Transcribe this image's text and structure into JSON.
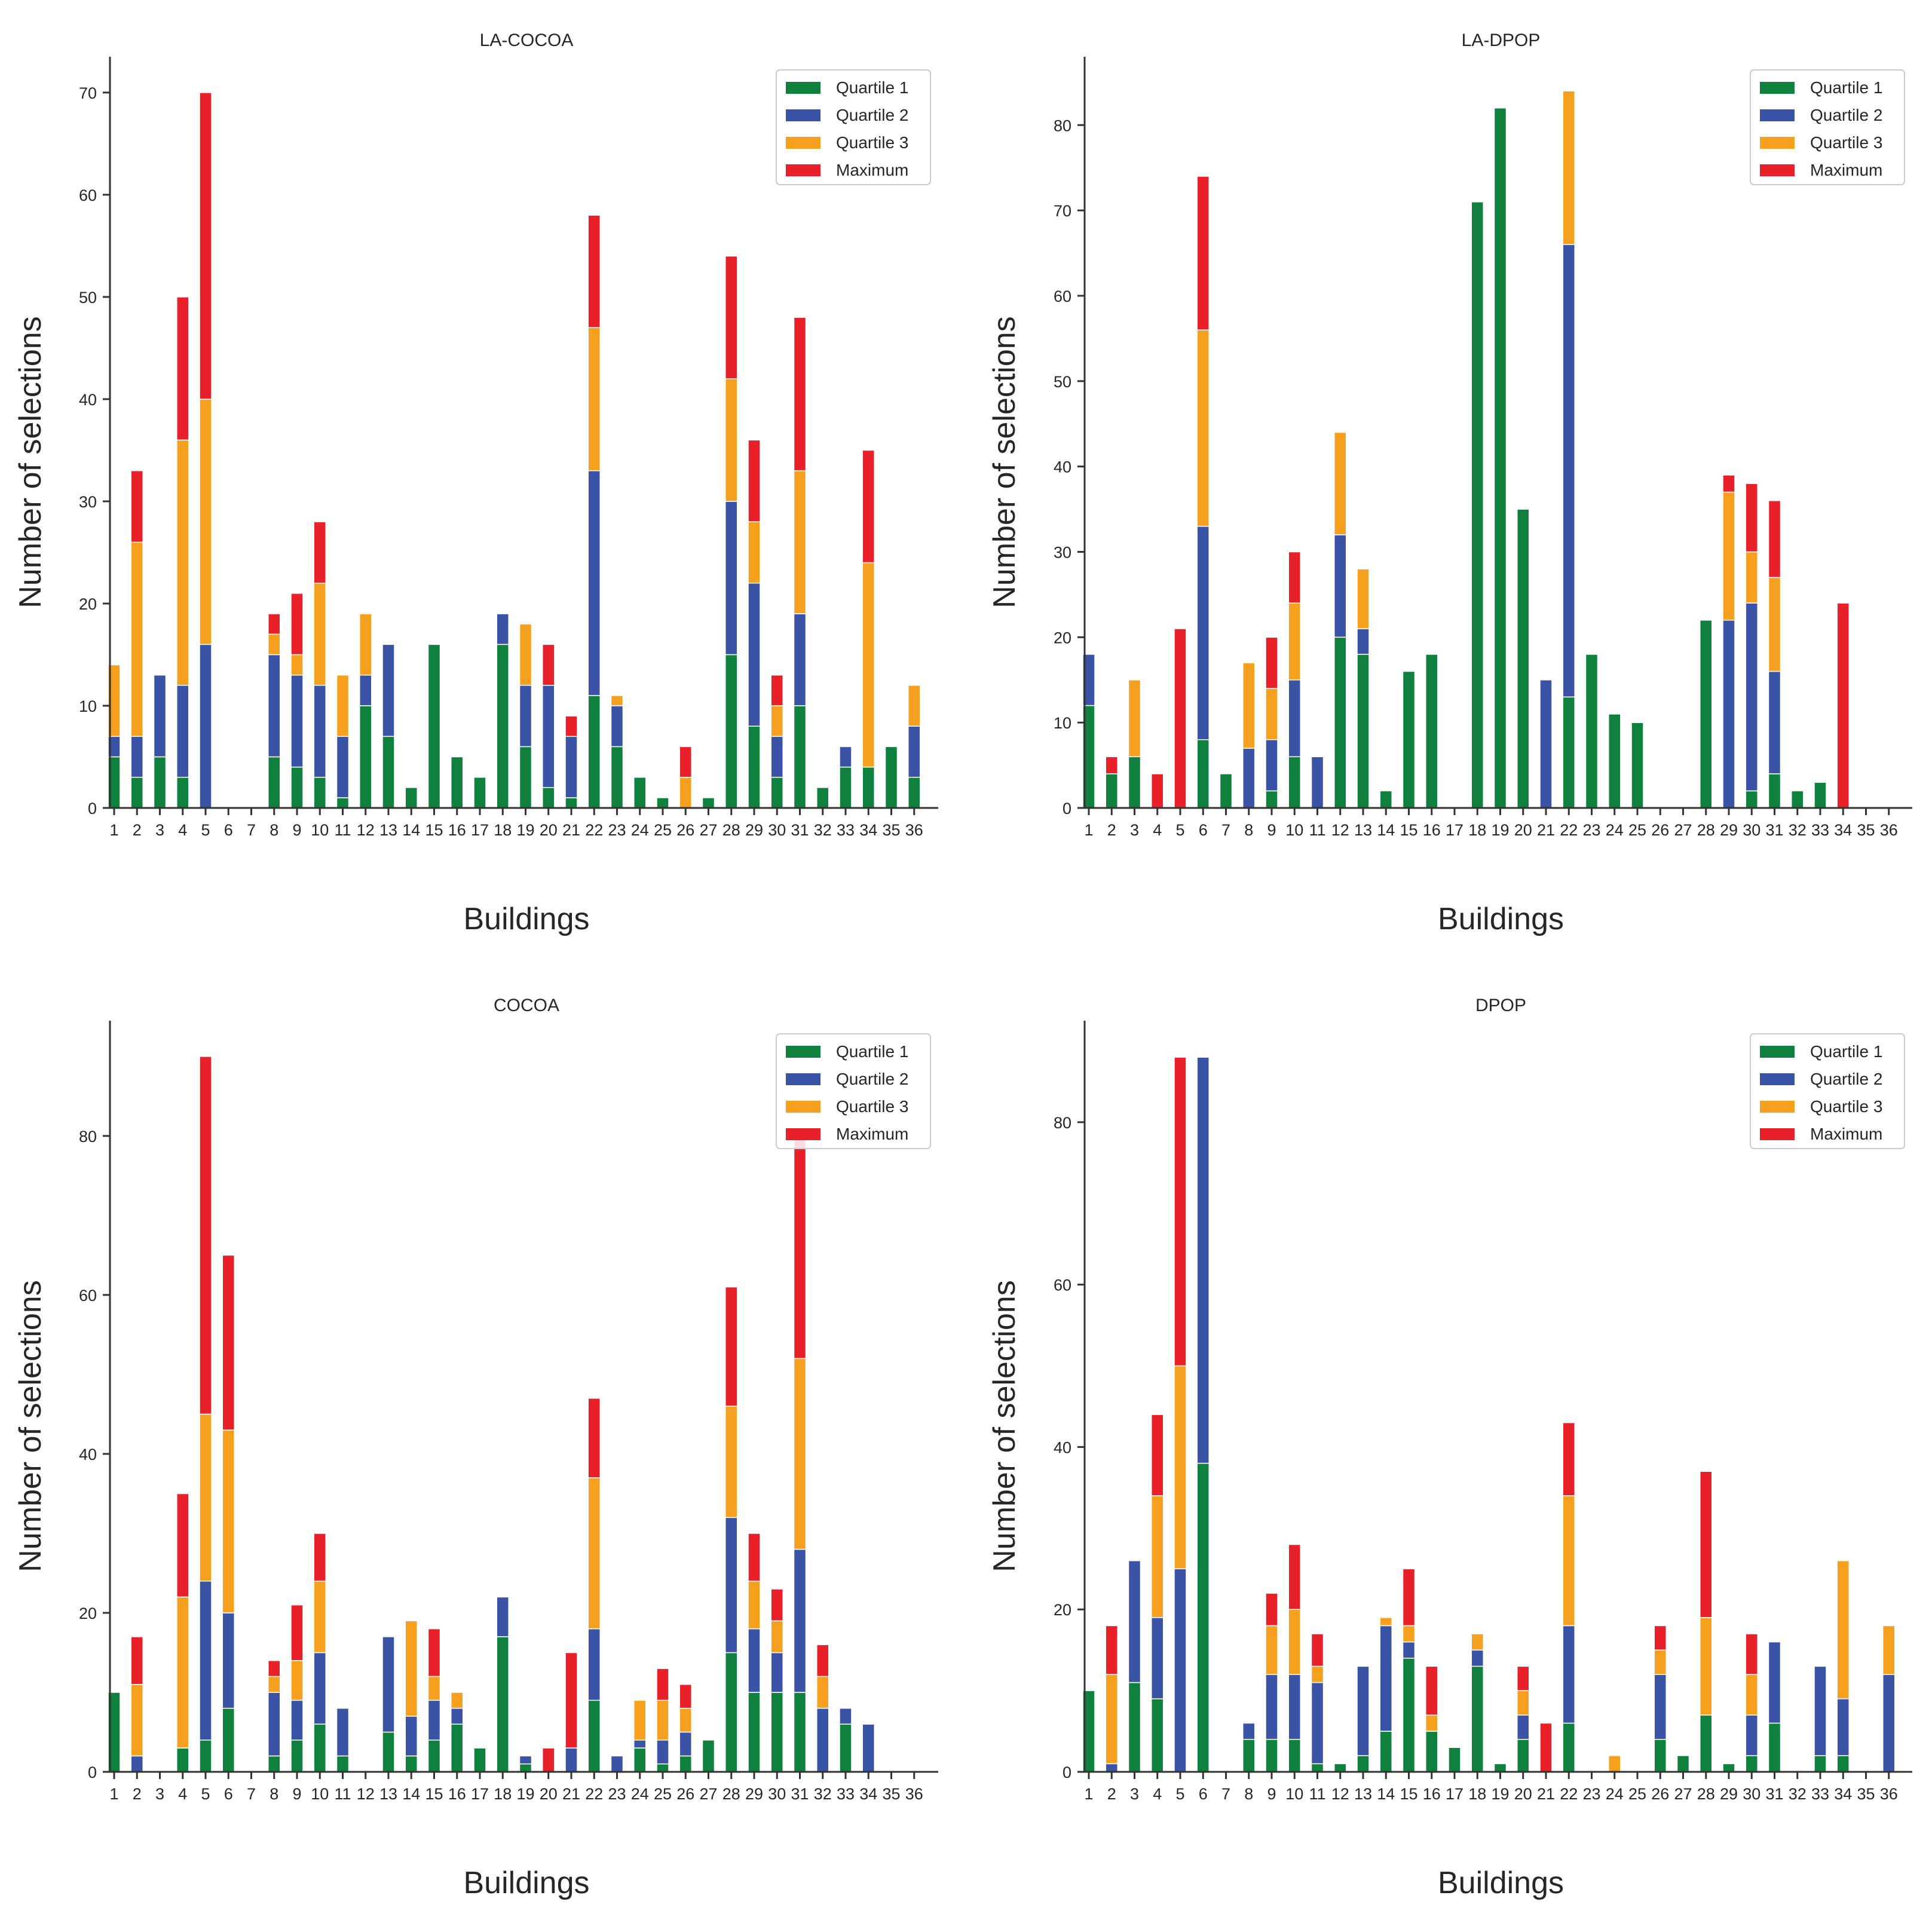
{
  "chart_data": [
    {
      "type": "bar",
      "stacked": true,
      "title": "LA-COCOA",
      "xlabel": "Buildings",
      "ylabel": "Number of selections",
      "ylim": [
        0,
        73.5
      ],
      "yticks": [
        0,
        10,
        20,
        30,
        40,
        50,
        60,
        70
      ],
      "legend_position": "top-right",
      "categories": [
        "1",
        "2",
        "3",
        "4",
        "5",
        "6",
        "7",
        "8",
        "9",
        "10",
        "11",
        "12",
        "13",
        "14",
        "15",
        "16",
        "17",
        "18",
        "19",
        "20",
        "21",
        "22",
        "23",
        "24",
        "25",
        "26",
        "27",
        "28",
        "29",
        "30",
        "31",
        "32",
        "33",
        "34",
        "35",
        "36"
      ],
      "series": [
        {
          "name": "Quartile 1",
          "color": "#10803e",
          "values": [
            5,
            3,
            5,
            3,
            0,
            0,
            0,
            5,
            4,
            3,
            1,
            10,
            7,
            2,
            16,
            5,
            3,
            16,
            6,
            2,
            1,
            11,
            6,
            3,
            1,
            0,
            1,
            15,
            8,
            3,
            10,
            2,
            4,
            4,
            6,
            3
          ]
        },
        {
          "name": "Quartile 2",
          "color": "#3a53a4",
          "values": [
            2,
            4,
            8,
            9,
            16,
            0,
            0,
            10,
            9,
            9,
            6,
            3,
            9,
            0,
            0,
            0,
            0,
            3,
            6,
            10,
            6,
            22,
            4,
            0,
            0,
            0,
            0,
            15,
            14,
            4,
            9,
            0,
            2,
            0,
            0,
            5
          ]
        },
        {
          "name": "Quartile 3",
          "color": "#f5a11f",
          "values": [
            7,
            19,
            0,
            24,
            24,
            0,
            0,
            2,
            2,
            10,
            6,
            6,
            0,
            0,
            0,
            0,
            0,
            0,
            6,
            0,
            0,
            14,
            1,
            0,
            0,
            3,
            0,
            12,
            6,
            3,
            14,
            0,
            0,
            20,
            0,
            4
          ]
        },
        {
          "name": "Maximum",
          "color": "#e8202a",
          "values": [
            0,
            7,
            0,
            14,
            30,
            0,
            0,
            2,
            6,
            6,
            0,
            0,
            0,
            0,
            0,
            0,
            0,
            0,
            0,
            4,
            2,
            11,
            0,
            0,
            0,
            3,
            0,
            12,
            8,
            3,
            15,
            0,
            0,
            11,
            0,
            0
          ]
        }
      ]
    },
    {
      "type": "bar",
      "stacked": true,
      "title": "LA-DPOP",
      "xlabel": "Buildings",
      "ylabel": "Number of selections",
      "ylim": [
        0,
        88
      ],
      "yticks": [
        0,
        10,
        20,
        30,
        40,
        50,
        60,
        70,
        80
      ],
      "legend_position": "top-right",
      "categories": [
        "1",
        "2",
        "3",
        "4",
        "5",
        "6",
        "7",
        "8",
        "9",
        "10",
        "11",
        "12",
        "13",
        "14",
        "15",
        "16",
        "17",
        "18",
        "19",
        "20",
        "21",
        "22",
        "23",
        "24",
        "25",
        "26",
        "27",
        "28",
        "29",
        "30",
        "31",
        "32",
        "33",
        "34",
        "35",
        "36"
      ],
      "series": [
        {
          "name": "Quartile 1",
          "color": "#10803e",
          "values": [
            12,
            4,
            6,
            0,
            0,
            8,
            4,
            0,
            2,
            6,
            0,
            20,
            18,
            2,
            16,
            18,
            0,
            71,
            82,
            35,
            0,
            13,
            18,
            11,
            10,
            0,
            0,
            22,
            0,
            2,
            4,
            2,
            3,
            0,
            0,
            0
          ]
        },
        {
          "name": "Quartile 2",
          "color": "#3a53a4",
          "values": [
            6,
            0,
            0,
            0,
            0,
            25,
            0,
            7,
            6,
            9,
            6,
            12,
            3,
            0,
            0,
            0,
            0,
            0,
            0,
            0,
            15,
            53,
            0,
            0,
            0,
            0,
            0,
            0,
            22,
            22,
            12,
            0,
            0,
            0,
            0,
            0
          ]
        },
        {
          "name": "Quartile 3",
          "color": "#f5a11f",
          "values": [
            0,
            0,
            9,
            0,
            0,
            23,
            0,
            10,
            6,
            9,
            0,
            12,
            7,
            0,
            0,
            0,
            0,
            0,
            0,
            0,
            0,
            18,
            0,
            0,
            0,
            0,
            0,
            0,
            15,
            6,
            11,
            0,
            0,
            0,
            0,
            0
          ]
        },
        {
          "name": "Maximum",
          "color": "#e8202a",
          "values": [
            0,
            2,
            0,
            4,
            21,
            18,
            0,
            0,
            6,
            6,
            0,
            0,
            0,
            0,
            0,
            0,
            0,
            0,
            0,
            0,
            0,
            0,
            0,
            0,
            0,
            0,
            0,
            0,
            2,
            8,
            9,
            0,
            0,
            24,
            0,
            0
          ]
        }
      ]
    },
    {
      "type": "bar",
      "stacked": true,
      "title": "COCOA",
      "xlabel": "Buildings",
      "ylabel": "Number of selections",
      "ylim": [
        0,
        94.5
      ],
      "yticks": [
        0,
        20,
        40,
        60,
        80
      ],
      "legend_position": "top-right",
      "categories": [
        "1",
        "2",
        "3",
        "4",
        "5",
        "6",
        "7",
        "8",
        "9",
        "10",
        "11",
        "12",
        "13",
        "14",
        "15",
        "16",
        "17",
        "18",
        "19",
        "20",
        "21",
        "22",
        "23",
        "24",
        "25",
        "26",
        "27",
        "28",
        "29",
        "30",
        "31",
        "32",
        "33",
        "34",
        "35",
        "36"
      ],
      "series": [
        {
          "name": "Quartile 1",
          "color": "#10803e",
          "values": [
            10,
            0,
            0,
            3,
            4,
            8,
            0,
            2,
            4,
            6,
            2,
            0,
            5,
            2,
            4,
            6,
            3,
            17,
            1,
            0,
            0,
            9,
            0,
            3,
            1,
            2,
            4,
            15,
            10,
            10,
            10,
            0,
            6,
            0,
            0,
            0
          ]
        },
        {
          "name": "Quartile 2",
          "color": "#3a53a4",
          "values": [
            0,
            2,
            0,
            0,
            20,
            12,
            0,
            8,
            5,
            9,
            6,
            0,
            12,
            5,
            5,
            2,
            0,
            5,
            1,
            0,
            3,
            9,
            2,
            1,
            3,
            3,
            0,
            17,
            8,
            5,
            18,
            8,
            2,
            6,
            0,
            0
          ]
        },
        {
          "name": "Quartile 3",
          "color": "#f5a11f",
          "values": [
            0,
            9,
            0,
            19,
            21,
            23,
            0,
            2,
            5,
            9,
            0,
            0,
            0,
            12,
            3,
            2,
            0,
            0,
            0,
            0,
            0,
            19,
            0,
            5,
            5,
            3,
            0,
            14,
            6,
            4,
            24,
            4,
            0,
            0,
            0,
            0
          ]
        },
        {
          "name": "Maximum",
          "color": "#e8202a",
          "values": [
            0,
            6,
            0,
            13,
            45,
            22,
            0,
            2,
            7,
            6,
            0,
            0,
            0,
            0,
            6,
            0,
            0,
            0,
            0,
            3,
            12,
            10,
            0,
            0,
            4,
            3,
            0,
            15,
            6,
            4,
            28,
            4,
            0,
            0,
            0,
            0
          ]
        }
      ]
    },
    {
      "type": "bar",
      "stacked": true,
      "title": "DPOP",
      "xlabel": "Buildings",
      "ylabel": "Number of selections",
      "ylim": [
        0,
        92.5
      ],
      "yticks": [
        0,
        20,
        40,
        60,
        80
      ],
      "legend_position": "top-right",
      "categories": [
        "1",
        "2",
        "3",
        "4",
        "5",
        "6",
        "7",
        "8",
        "9",
        "10",
        "11",
        "12",
        "13",
        "14",
        "15",
        "16",
        "17",
        "18",
        "19",
        "20",
        "21",
        "22",
        "23",
        "24",
        "25",
        "26",
        "27",
        "28",
        "29",
        "30",
        "31",
        "32",
        "33",
        "34",
        "35",
        "36"
      ],
      "series": [
        {
          "name": "Quartile 1",
          "color": "#10803e",
          "values": [
            10,
            0,
            11,
            9,
            0,
            38,
            0,
            4,
            4,
            4,
            1,
            1,
            2,
            5,
            14,
            5,
            3,
            13,
            1,
            4,
            0,
            6,
            0,
            0,
            0,
            4,
            2,
            7,
            1,
            2,
            6,
            0,
            2,
            2,
            0,
            0
          ]
        },
        {
          "name": "Quartile 2",
          "color": "#3a53a4",
          "values": [
            0,
            1,
            15,
            10,
            25,
            50,
            0,
            2,
            8,
            8,
            10,
            0,
            11,
            13,
            2,
            0,
            0,
            2,
            0,
            3,
            0,
            12,
            0,
            0,
            0,
            8,
            0,
            0,
            0,
            5,
            10,
            0,
            11,
            7,
            0,
            12
          ]
        },
        {
          "name": "Quartile 3",
          "color": "#f5a11f",
          "values": [
            0,
            11,
            0,
            15,
            25,
            0,
            0,
            0,
            6,
            8,
            2,
            0,
            0,
            1,
            2,
            2,
            0,
            2,
            0,
            3,
            0,
            16,
            0,
            2,
            0,
            3,
            0,
            12,
            0,
            5,
            0,
            0,
            0,
            17,
            0,
            6
          ]
        },
        {
          "name": "Maximum",
          "color": "#e8202a",
          "values": [
            0,
            6,
            0,
            10,
            38,
            0,
            0,
            0,
            4,
            8,
            4,
            0,
            0,
            0,
            7,
            6,
            0,
            0,
            0,
            3,
            6,
            9,
            0,
            0,
            0,
            3,
            0,
            18,
            0,
            5,
            0,
            0,
            0,
            0,
            0,
            0
          ]
        }
      ]
    }
  ]
}
